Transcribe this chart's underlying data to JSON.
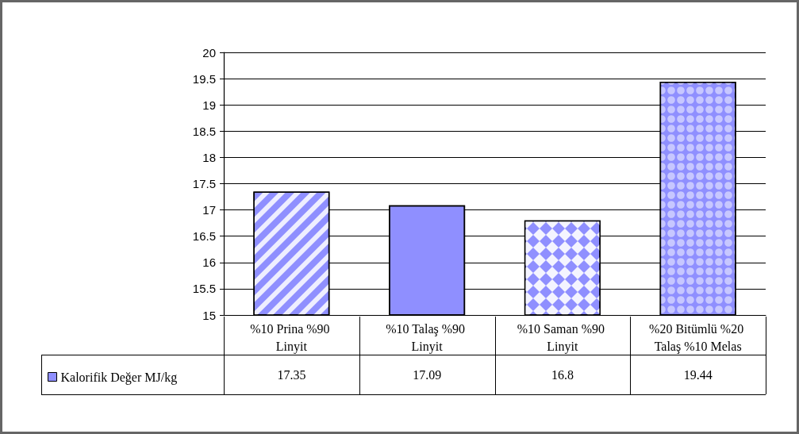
{
  "chart_data": {
    "type": "bar",
    "categories": [
      "%10 Prina %90 Linyit",
      "%10 Talaş %90 Linyit",
      "%10 Saman %90 Linyit",
      "%20 Bitümlü %20 Talaş %10 Melas"
    ],
    "series": [
      {
        "name": "Kalorifik Değer MJ/kg",
        "color": "#8f8fff",
        "values": [
          17.35,
          17.09,
          16.8,
          19.44
        ]
      }
    ],
    "ylim": [
      15,
      20
    ],
    "yticks": [
      15,
      15.5,
      16,
      16.5,
      17,
      17.5,
      18,
      18.5,
      19,
      19.5,
      20
    ],
    "grid": "y",
    "legend": "bottom left",
    "data_labels": true
  }
}
